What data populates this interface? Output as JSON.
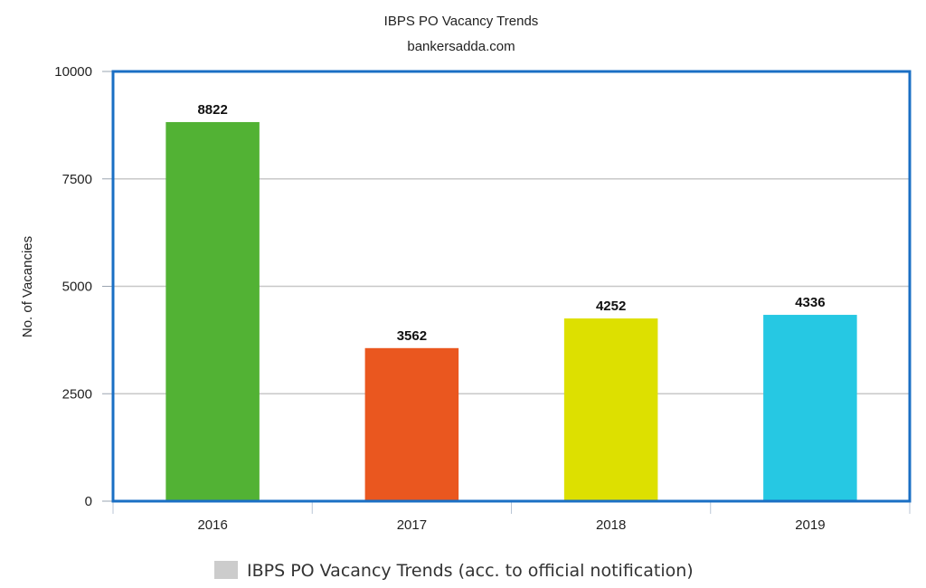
{
  "chart_data": {
    "type": "bar",
    "title": "IBPS PO Vacancy Trends",
    "subtitle": "bankersadda.com",
    "xlabel": "",
    "ylabel": "No. of Vacancies",
    "categories": [
      "2016",
      "2017",
      "2018",
      "2019"
    ],
    "series": [
      {
        "name": "IBPS PO Vacancy Trends (acc. to official notification)",
        "values": [
          8822,
          3562,
          4252,
          4336
        ]
      }
    ],
    "data_labels": [
      "8822",
      "3562",
      "4252",
      "4336"
    ],
    "bar_colors": [
      "#52b234",
      "#ea571f",
      "#dde000",
      "#26c8e3"
    ],
    "ylim": [
      0,
      10000
    ],
    "yticks": [
      0,
      2500,
      5000,
      7500,
      10000
    ],
    "grid": true,
    "legend_position": "bottom-center",
    "legend_swatch_color": "#cccccc",
    "frame_color": "#1a6fc4"
  }
}
